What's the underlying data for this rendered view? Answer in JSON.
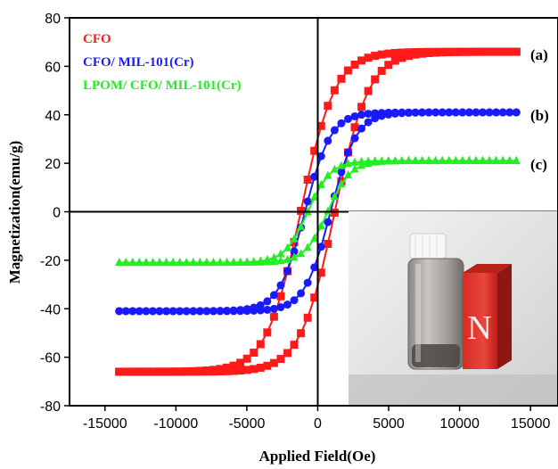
{
  "chart_data": {
    "type": "scatter",
    "xlabel": "Applied Field(Oe)",
    "ylabel": "Magnetization(emu/g)",
    "xlim": [
      -17500,
      17000
    ],
    "ylim": [
      -80,
      80
    ],
    "xticks": [
      -15000,
      -10000,
      -5000,
      0,
      5000,
      10000,
      15000
    ],
    "yticks": [
      -80,
      -60,
      -40,
      -20,
      0,
      20,
      40,
      60,
      80
    ],
    "legend_position": "top-left",
    "series": [
      {
        "name": "CFO",
        "label": "(a)",
        "color": "#ff1a1a",
        "marker": "square",
        "Ms": 66,
        "Hc": 1200,
        "width": 2400
      },
      {
        "name": "CFO/ MIL-101(Cr)",
        "label": "(b)",
        "color": "#1a1aff",
        "marker": "circle",
        "Ms": 41,
        "Hc": 900,
        "width": 1800
      },
      {
        "name": "LPOM/ CFO/ MIL-101(Cr)",
        "label": "(c)",
        "color": "#22ee22",
        "marker": "triangle",
        "Ms": 21,
        "Hc": 700,
        "width": 1600
      }
    ],
    "inset": {
      "type": "photo",
      "subject": "vial next to magnet",
      "magnet_letter": "N"
    }
  }
}
